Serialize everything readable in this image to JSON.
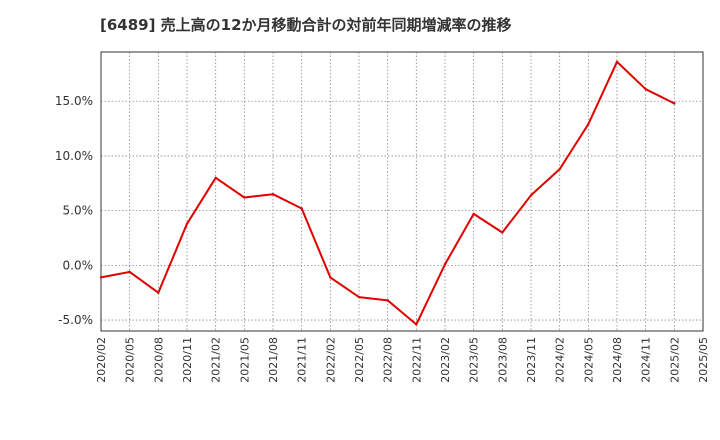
{
  "chart_data": {
    "type": "line",
    "title": "[6489]  売上高の12か月移動合計の対前年同期増減率の推移",
    "xlabel": "",
    "ylabel": "",
    "ylim": [
      -6.0,
      19.5
    ],
    "yticks": [
      -5.0,
      0.0,
      5.0,
      10.0,
      15.0
    ],
    "ytick_labels": [
      "-5.0%",
      "0.0%",
      "5.0%",
      "10.0%",
      "15.0%"
    ],
    "grid": true,
    "categories": [
      "2020/02",
      "2020/05",
      "2020/08",
      "2020/11",
      "2021/02",
      "2021/05",
      "2021/08",
      "2021/11",
      "2022/02",
      "2022/05",
      "2022/08",
      "2022/11",
      "2023/02",
      "2023/05",
      "2023/08",
      "2023/11",
      "2024/02",
      "2024/05",
      "2024/08",
      "2024/11",
      "2025/02",
      "2025/05"
    ],
    "series": [
      {
        "name": "増減率",
        "color": "#e00000",
        "values": [
          -1.1,
          -0.6,
          -2.5,
          3.8,
          8.0,
          6.2,
          6.5,
          5.2,
          -1.1,
          -2.9,
          -3.2,
          -5.4,
          0.1,
          4.7,
          3.0,
          6.4,
          8.8,
          12.9,
          18.6,
          16.1,
          14.8,
          null
        ]
      }
    ]
  }
}
